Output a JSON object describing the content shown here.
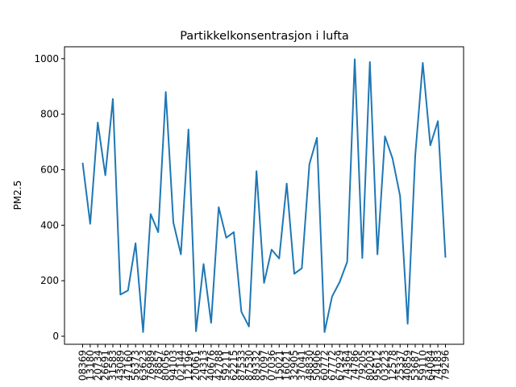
{
  "chart_data": {
    "type": "line",
    "title": "Partikkelkonsentrasjon i lufta",
    "y_label": "PM2.5",
    "categories": [
      "08369",
      "13180",
      "20734",
      "26691",
      "31583",
      "43089",
      "47160",
      "56373",
      "63623",
      "76989",
      "78857",
      "80056",
      "94103",
      "02144",
      "12196",
      "20061",
      "24313",
      "40676",
      "42788",
      "59211",
      "62215",
      "87533",
      "87530",
      "89332",
      "97097",
      "07036",
      "15021",
      "16021",
      "32905",
      "37041",
      "48830",
      "50906",
      "60772",
      "67772",
      "67929",
      "74364",
      "74786",
      "79205",
      "80203",
      "95612",
      "03223",
      "12578",
      "25337",
      "40859",
      "53687",
      "59110",
      "64084",
      "74183",
      "79296"
    ],
    "values": [
      625,
      405,
      770,
      580,
      855,
      150,
      165,
      335,
      15,
      440,
      375,
      880,
      410,
      295,
      745,
      18,
      260,
      48,
      465,
      355,
      375,
      88,
      35,
      595,
      192,
      312,
      280,
      550,
      225,
      245,
      620,
      715,
      15,
      143,
      195,
      268,
      998,
      282,
      988,
      295,
      720,
      640,
      505,
      45,
      650,
      985,
      688,
      775,
      283
    ],
    "color": "#1f77b4",
    "ylim": [
      -29,
      1043
    ],
    "yticks": [
      0,
      200,
      400,
      600,
      800,
      1000
    ]
  }
}
